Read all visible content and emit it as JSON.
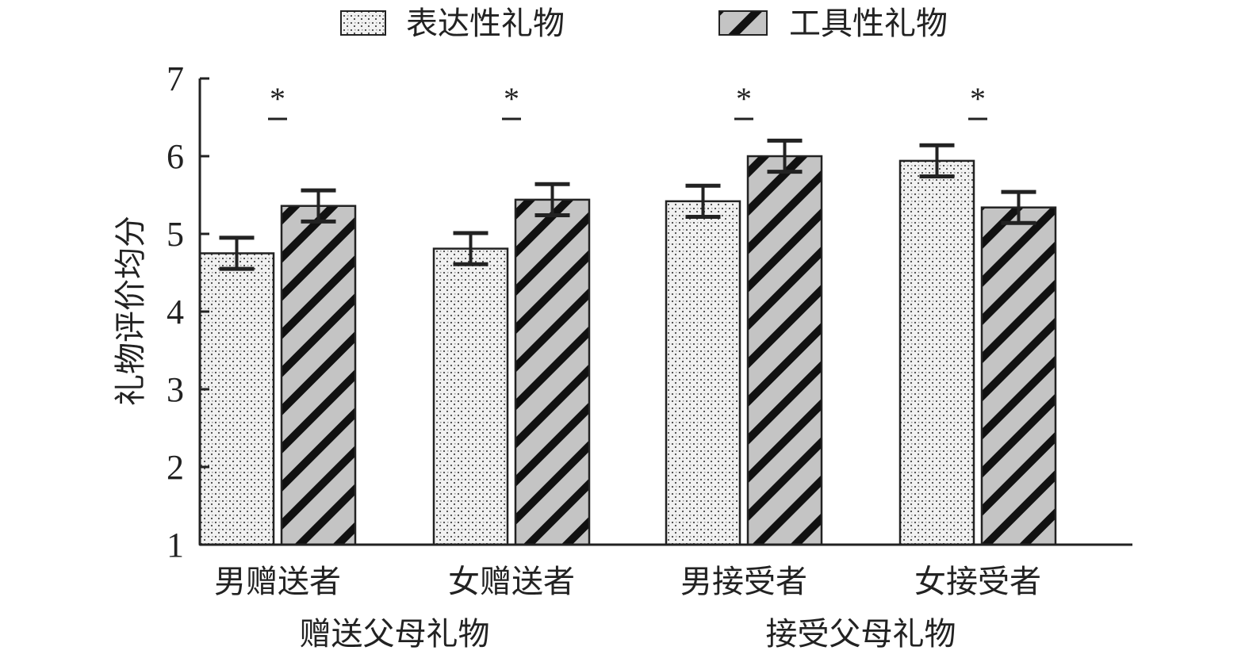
{
  "chart_data": {
    "type": "bar",
    "ylabel": "礼物评价均分",
    "ylim": [
      1,
      7
    ],
    "yticks": [
      1,
      2,
      3,
      4,
      5,
      6,
      7
    ],
    "categories": [
      "男赠送者",
      "女赠送者",
      "男接受者",
      "女接受者"
    ],
    "groups": [
      {
        "label": "赠送父母礼物",
        "categories": [
          "男赠送者",
          "女赠送者"
        ]
      },
      {
        "label": "接受父母礼物",
        "categories": [
          "男接受者",
          "女接受者"
        ]
      }
    ],
    "series": [
      {
        "name": "表达性礼物",
        "values": [
          4.75,
          4.81,
          5.42,
          5.94
        ],
        "errors": [
          0.2,
          0.2,
          0.2,
          0.2
        ]
      },
      {
        "name": "工具性礼物",
        "values": [
          5.36,
          5.44,
          6.0,
          5.34
        ],
        "errors": [
          0.2,
          0.2,
          0.2,
          0.2
        ]
      }
    ],
    "significance": [
      "*",
      "*",
      "*",
      "*"
    ],
    "legend_position": "top",
    "grid": false
  }
}
